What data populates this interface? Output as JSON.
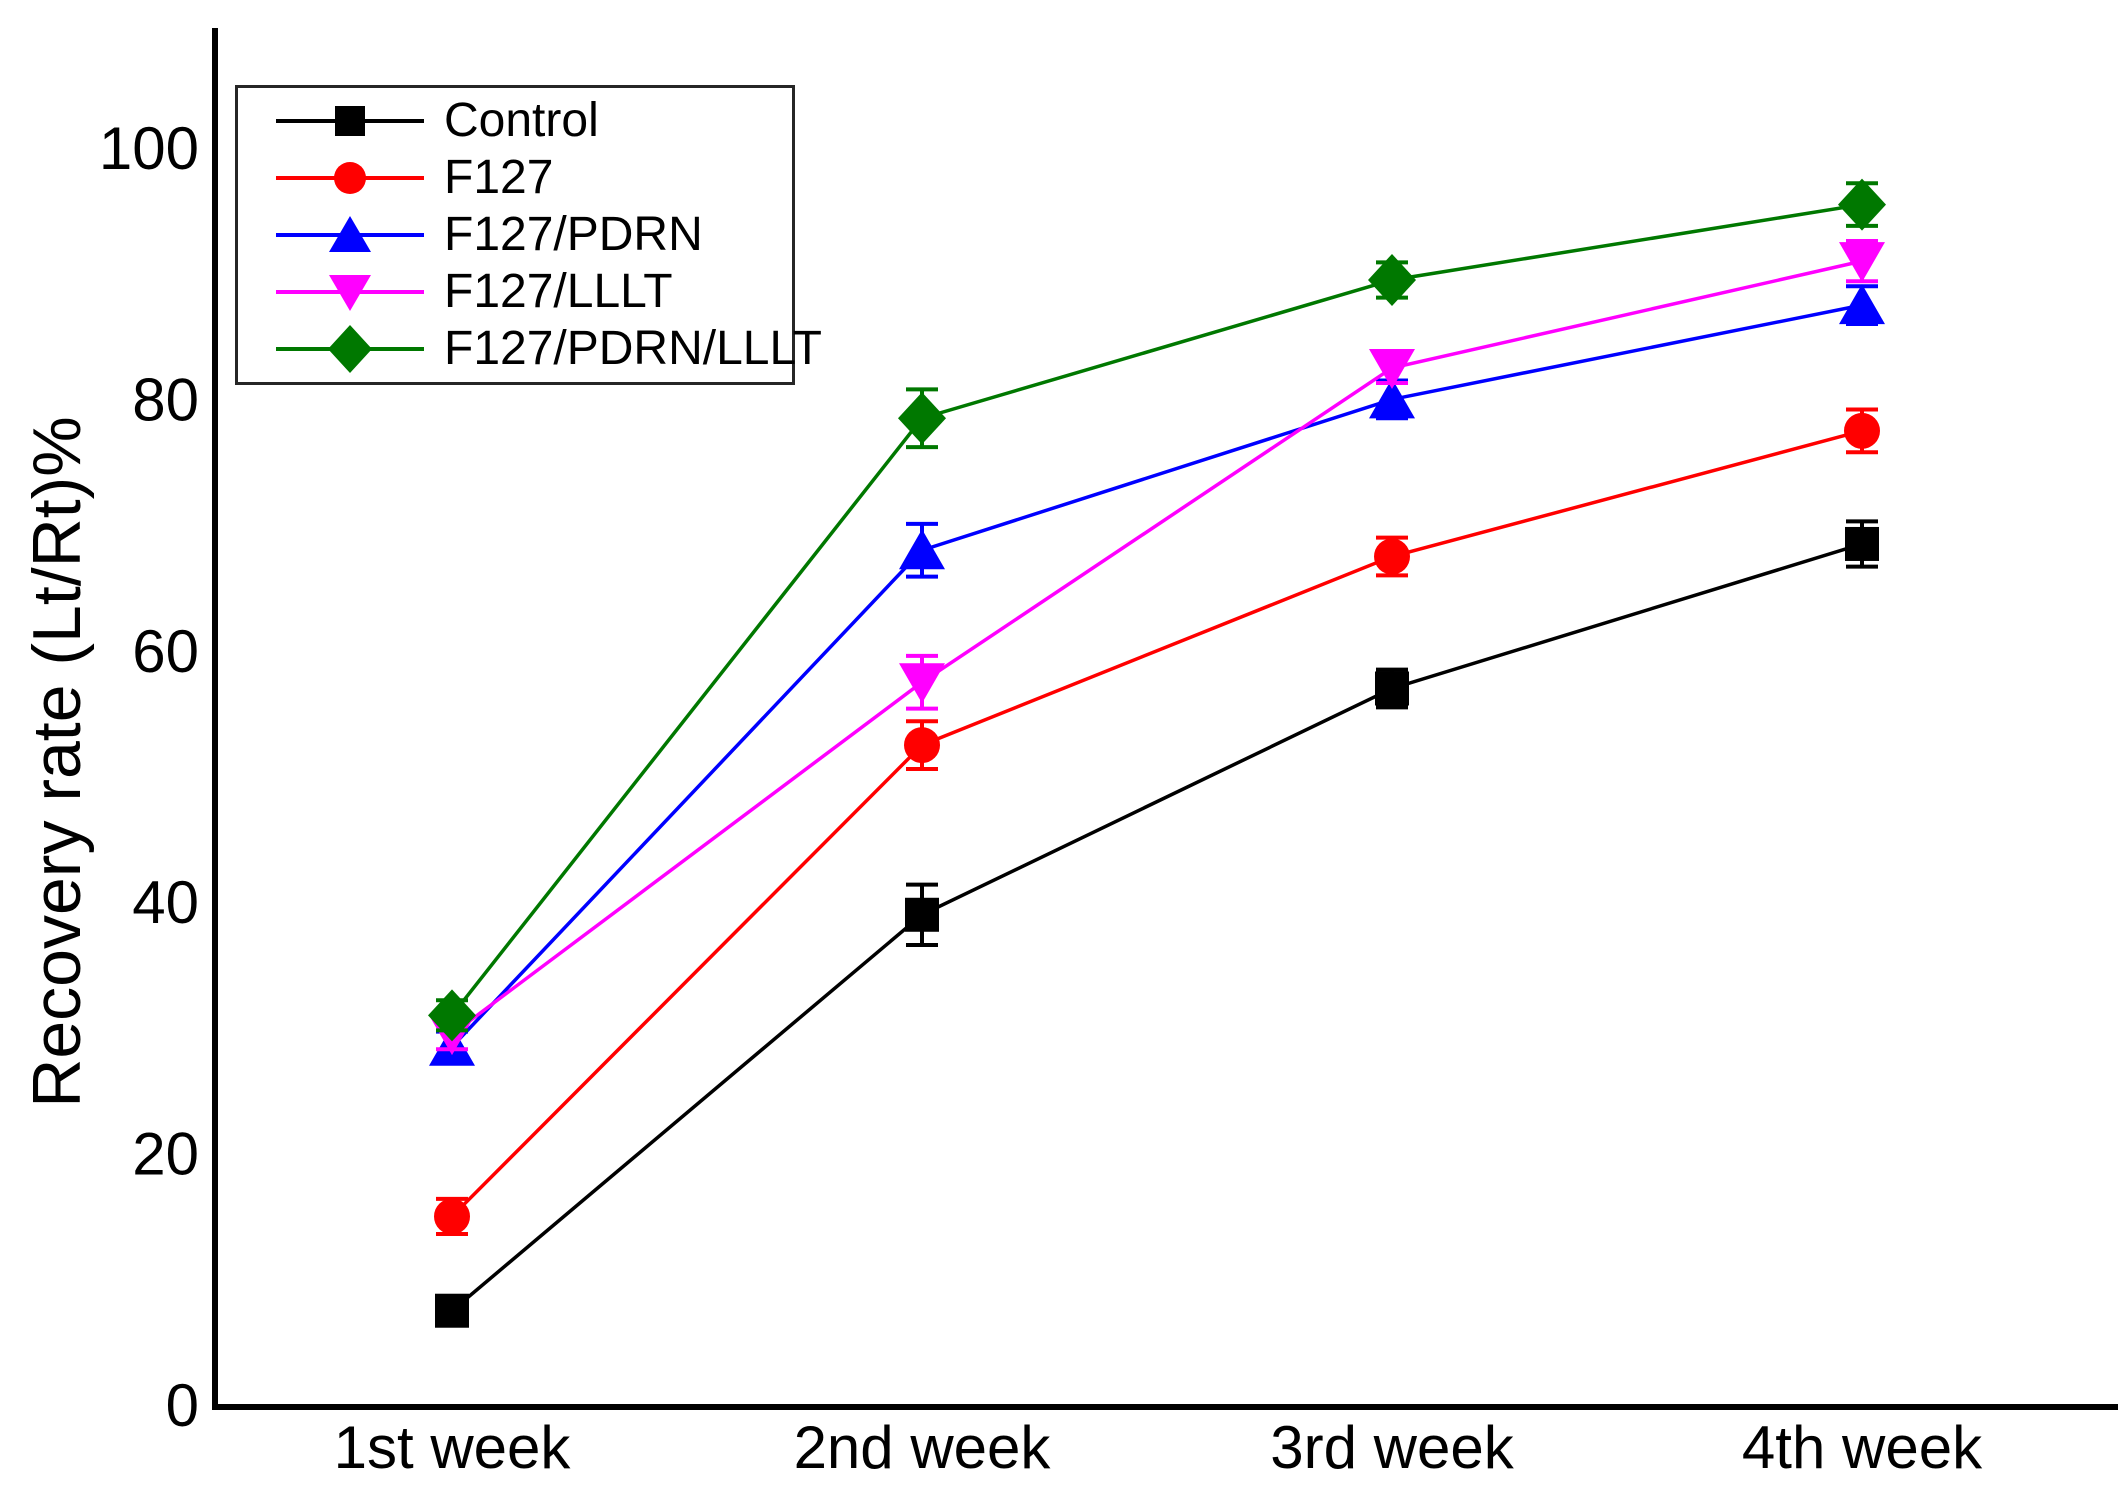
{
  "chart_data": {
    "type": "line",
    "title": "",
    "xlabel": "",
    "ylabel": "Recovery rate (Lt/Rt)%",
    "categories": [
      "1st week",
      "2nd week",
      "3rd week",
      "4th week"
    ],
    "ylim": [
      0,
      109
    ],
    "yticks": [
      0,
      20,
      40,
      60,
      80,
      100
    ],
    "grid": false,
    "legend_position": "top-left",
    "background_color": "#ffffff",
    "axis_color": "#000000",
    "series": [
      {
        "name": "Control",
        "color": "#000000",
        "marker": "square",
        "values": [
          7.5,
          39,
          57,
          68.5
        ],
        "errors": [
          0.8,
          2.4,
          1.5,
          1.8
        ]
      },
      {
        "name": "F127",
        "color": "#ff0000",
        "marker": "circle",
        "values": [
          15,
          52.5,
          67.5,
          77.5
        ],
        "errors": [
          1.4,
          1.9,
          1.5,
          1.7
        ]
      },
      {
        "name": "F127/PDRN",
        "color": "#0000ff",
        "marker": "triangle-up",
        "values": [
          28.5,
          68,
          80,
          87.5
        ],
        "errors": [
          1.2,
          2.1,
          1.5,
          1.5
        ]
      },
      {
        "name": "F127/LLLT",
        "color": "#ff00ff",
        "marker": "triangle-down",
        "values": [
          29.5,
          57.5,
          82.5,
          91
        ],
        "errors": [
          1.2,
          2.1,
          1.2,
          1.6
        ]
      },
      {
        "name": "F127/PDRN/LLLT",
        "color": "#007800",
        "marker": "diamond",
        "values": [
          31,
          78.5,
          89.5,
          95.5
        ],
        "errors": [
          1.2,
          2.3,
          1.4,
          1.7
        ]
      }
    ]
  }
}
